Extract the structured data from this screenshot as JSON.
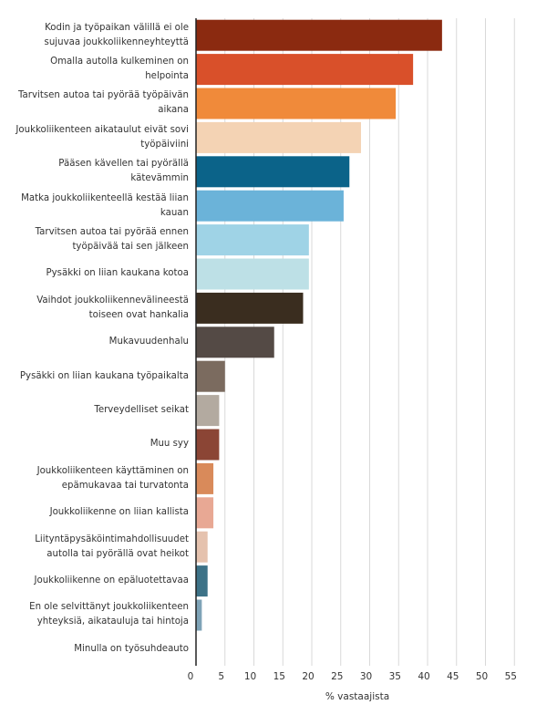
{
  "chart_data": {
    "type": "bar",
    "orientation": "horizontal",
    "xlabel": "% vastaajista",
    "xlim": [
      0,
      55
    ],
    "xticks": [
      0,
      5,
      10,
      15,
      20,
      25,
      30,
      35,
      40,
      45,
      50,
      55
    ],
    "grid": true,
    "categories": [
      "Kodin ja työpaikan välillä ei ole sujuvaa joukkoliikenneyhteyttä",
      "Omalla autolla kulkeminen on helpointa",
      "Tarvitsen autoa tai pyörää työpäivän aikana",
      "Joukkoliikenteen aikataulut eivät sovi työpäiviini",
      "Pääsen kävellen tai pyörällä kätevämmin",
      "Matka joukkoliikenteellä kestää liian kauan",
      "Tarvitsen autoa tai pyörää ennen työpäivää tai sen jälkeen",
      "Pysäkki on liian kaukana kotoa",
      "Vaihdot joukkoliikennevälineestä toiseen ovat hankalia",
      "Mukavuudenhalu",
      "Pysäkki on liian kaukana työpaikalta",
      "Terveydelliset seikat",
      "Muu syy",
      "Joukkoliikenteen käyttäminen on epämukavaa tai turvatonta",
      "Joukkoliikenne on liian kallista",
      "Liityntäpysäköintimahdollisuudet autolla tai pyörällä ovat heikot",
      "Joukkoliikenne on epäluotettavaa",
      "En ole selvittänyt joukkoliikenteen yhteyksiä, aikatauluja tai hintoja",
      "Minulla on työsuhdeauto"
    ],
    "values": [
      42.5,
      37.5,
      34.5,
      28.5,
      26.5,
      25.5,
      19.5,
      19.5,
      18.5,
      13.5,
      5.0,
      4.0,
      4.0,
      3.0,
      3.0,
      2.0,
      2.0,
      1.0,
      0
    ],
    "colors": [
      "#8b2a10",
      "#d9502a",
      "#f08a3a",
      "#f4d3b4",
      "#0b6389",
      "#6bb3d9",
      "#9fd3e6",
      "#bde0e6",
      "#3a2d1f",
      "#544a45",
      "#7b6b5f",
      "#b3aaa0",
      "#8b4535",
      "#d98a5a",
      "#e8a894",
      "#e5c2ae",
      "#3d7287",
      "#7ea3b7",
      "#cccccc"
    ]
  }
}
